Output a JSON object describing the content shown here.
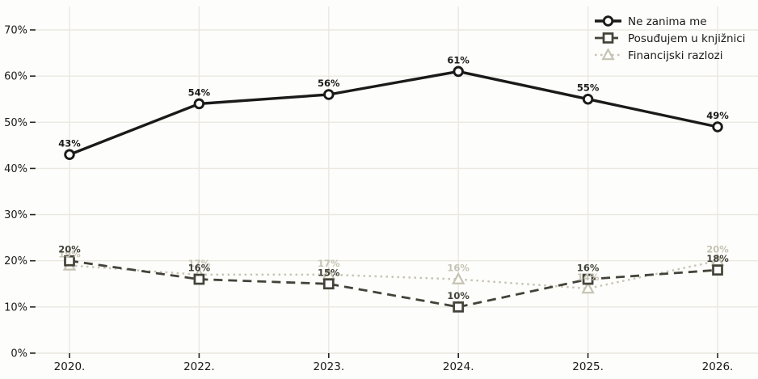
{
  "chart_data": {
    "type": "line",
    "categories": [
      "2020.",
      "2022.",
      "2023.",
      "2024.",
      "2025.",
      "2026."
    ],
    "series": [
      {
        "name": "Ne zanima me",
        "values": [
          43,
          54,
          56,
          61,
          55,
          49
        ],
        "labels": [
          "43%",
          "54%",
          "56%",
          "61%",
          "55%",
          "49%"
        ],
        "color": "#1a1a1a",
        "line_style": "solid",
        "marker": "circle"
      },
      {
        "name": "Posuđujem u knjižnici",
        "values": [
          20,
          16,
          15,
          10,
          16,
          18
        ],
        "labels": [
          "20%",
          "16%",
          "15%",
          "10%",
          "16%",
          "18%"
        ],
        "color": "#43433a",
        "line_style": "dashed",
        "marker": "square"
      },
      {
        "name": "Financijski razlozi",
        "values": [
          19,
          17,
          17,
          16,
          14,
          20
        ],
        "labels": [
          "19%",
          "17%",
          "17%",
          "16%",
          "14%",
          "20%"
        ],
        "color": "#c6c3b4",
        "line_style": "dotted",
        "marker": "triangle"
      }
    ],
    "title": "",
    "xlabel": "",
    "ylabel": "",
    "y_ticks": [
      "0%",
      "10%",
      "20%",
      "30%",
      "40%",
      "50%",
      "60%",
      "70%"
    ],
    "y_tick_values": [
      0,
      10,
      20,
      30,
      40,
      50,
      60,
      70
    ],
    "ylim": [
      0,
      75
    ],
    "grid": true,
    "legend_position": "upper-right",
    "colors": {
      "background": "#fdfdfb",
      "grid_line": "#eae8e0",
      "axis_text": "#1a1a1a",
      "tick_mark": "#262626",
      "marker_fill": "#fdfdfb"
    }
  }
}
